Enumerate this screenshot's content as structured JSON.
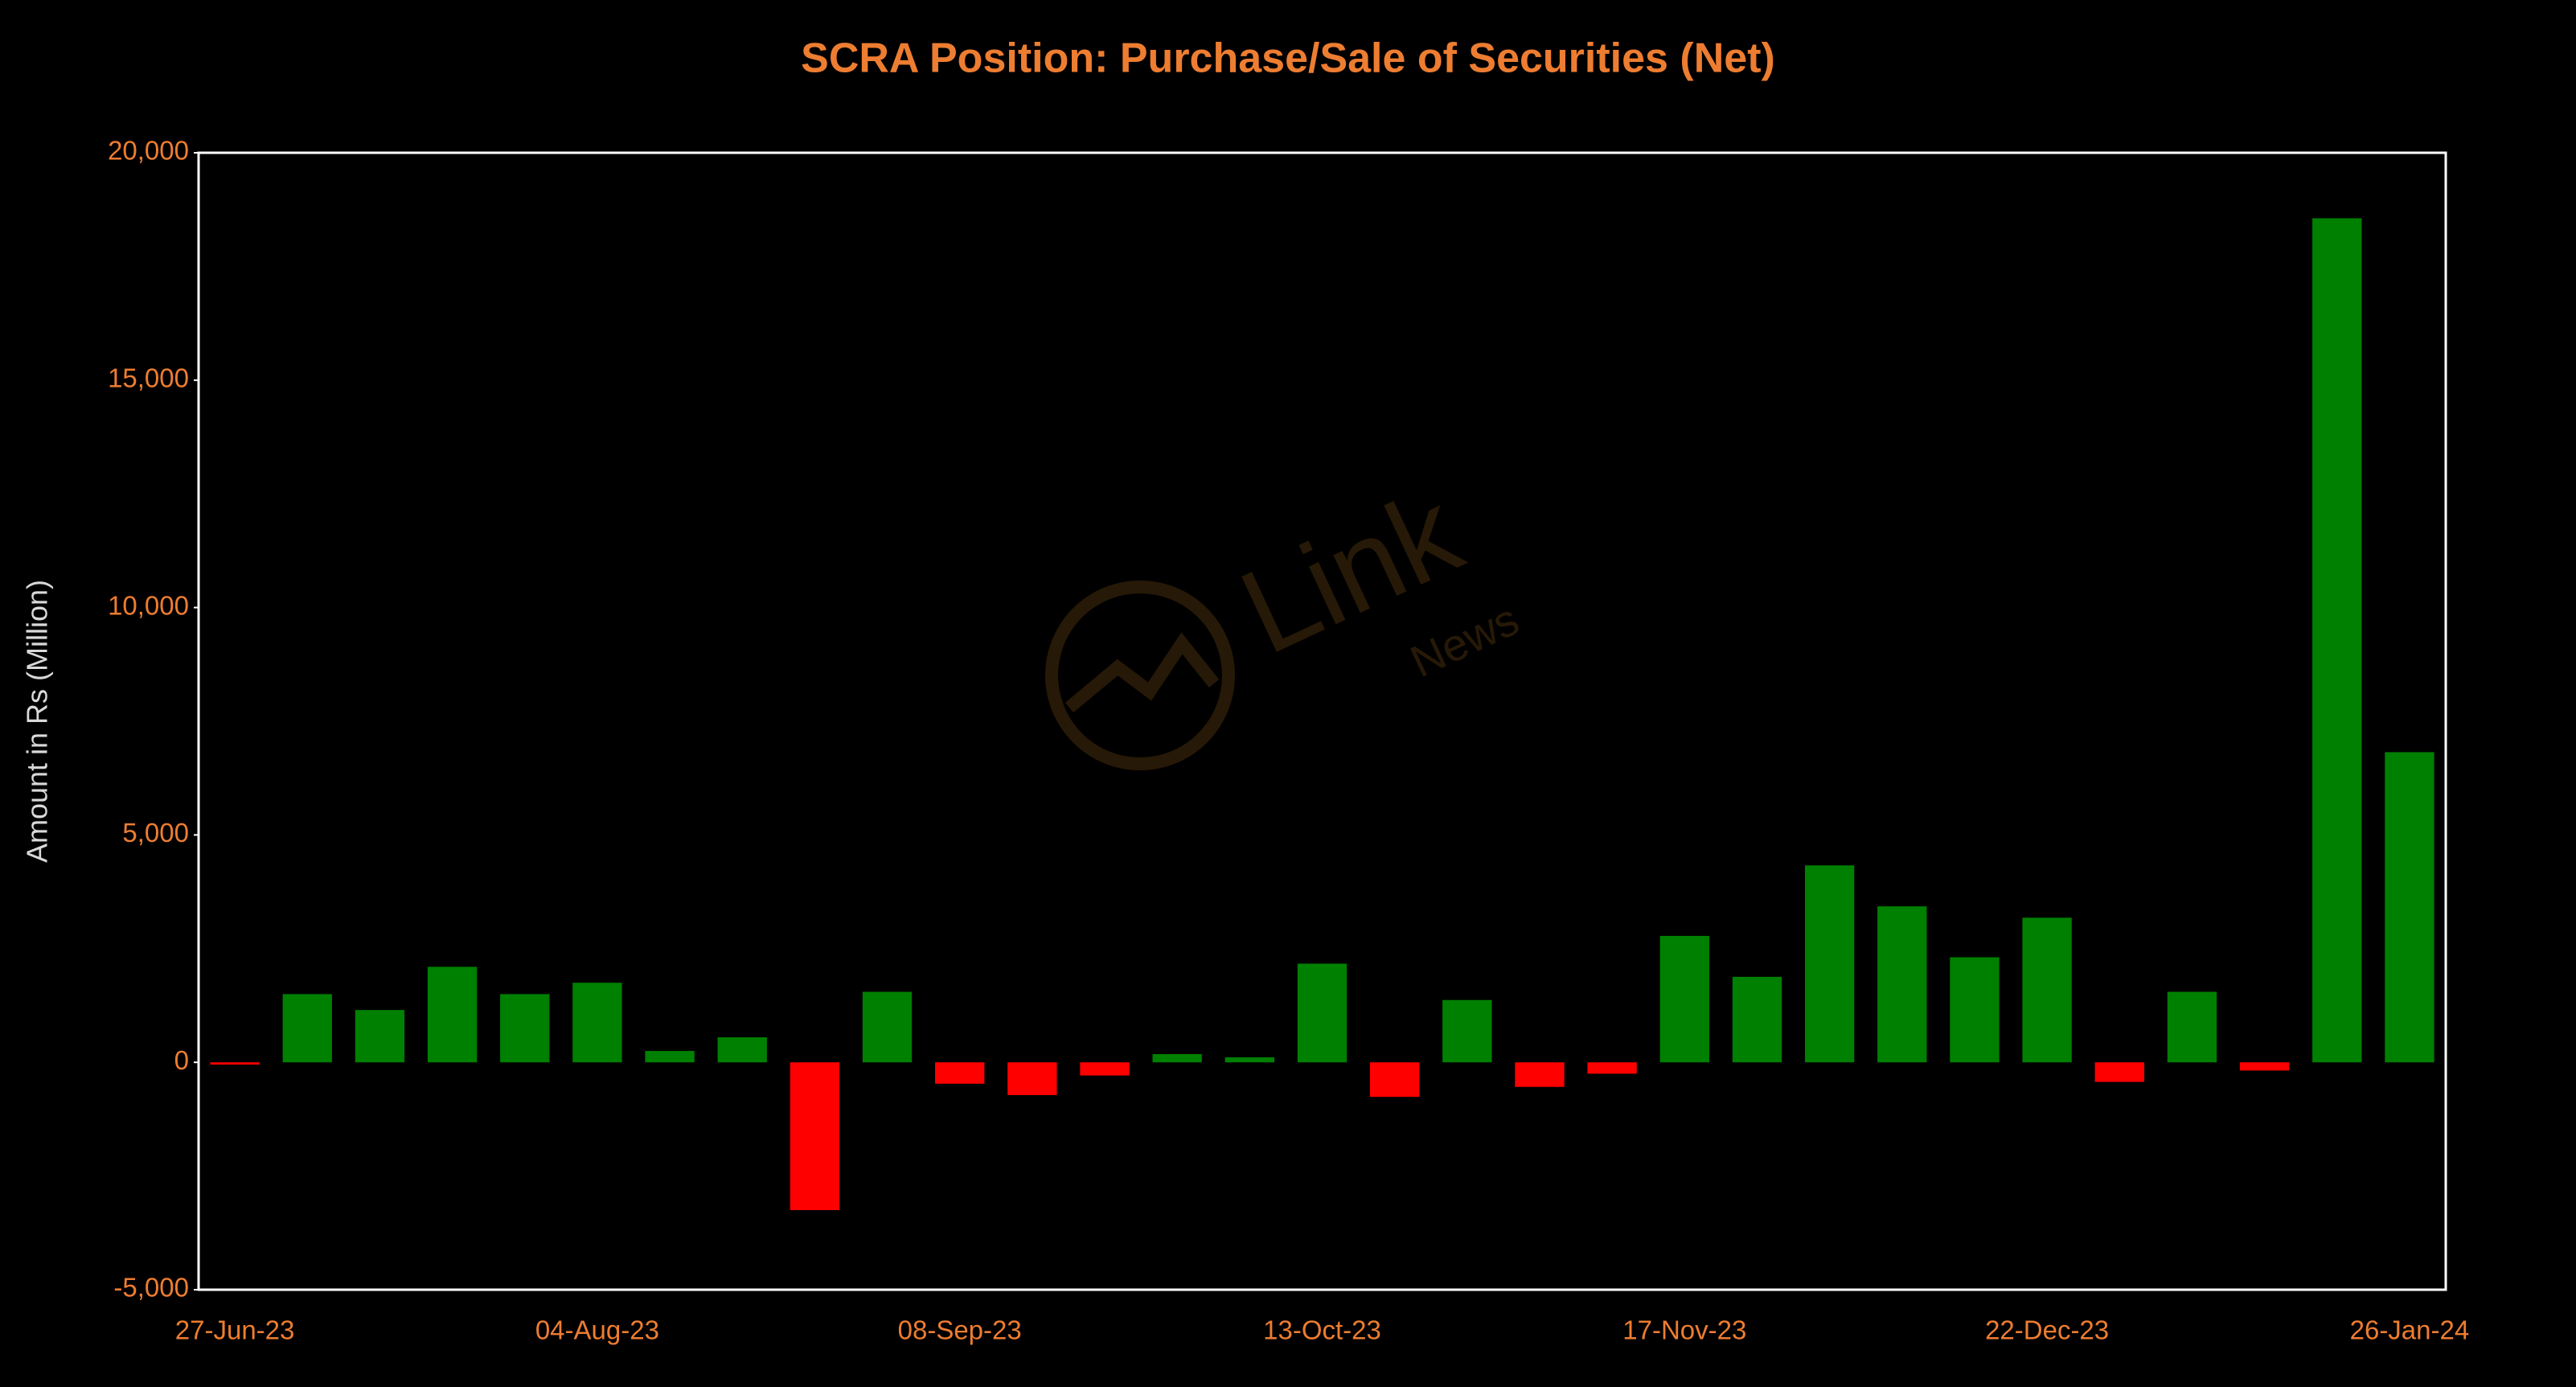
{
  "chart_data": {
    "type": "bar",
    "title": "SCRA Position: Purchase/Sale of Securities (Net)",
    "y_label": "Amount in Rs (Million)",
    "watermark": {
      "text": "Link",
      "subtext": "News"
    },
    "categories": [
      "27-Jun-23",
      null,
      null,
      null,
      null,
      "04-Aug-23",
      null,
      null,
      null,
      null,
      "08-Sep-23",
      null,
      null,
      null,
      null,
      "13-Oct-23",
      null,
      null,
      null,
      null,
      "17-Nov-23",
      null,
      null,
      null,
      null,
      "22-Dec-23",
      null,
      null,
      null,
      null,
      "26-Jan-24"
    ],
    "values": [
      -50,
      1500,
      1150,
      2100,
      1500,
      1750,
      250,
      550,
      -3250,
      1550,
      -470,
      -720,
      -290,
      180,
      110,
      2170,
      -760,
      1370,
      -540,
      -250,
      2780,
      1880,
      4330,
      3430,
      2310,
      3180,
      -430,
      1550,
      -180,
      18560,
      6820
    ],
    "colors": {
      "positive": "#008000",
      "negative": "#ff0000"
    },
    "ylim": [
      -5000,
      20000
    ],
    "yticks": [
      {
        "value": -5000,
        "label": "-5,000"
      },
      0,
      {
        "value": 5000,
        "label": "5,000"
      },
      {
        "value": 10000,
        "label": "10,000"
      },
      {
        "value": 15000,
        "label": "15,000"
      },
      {
        "value": 20000,
        "label": "20,000"
      }
    ],
    "grid": false
  }
}
